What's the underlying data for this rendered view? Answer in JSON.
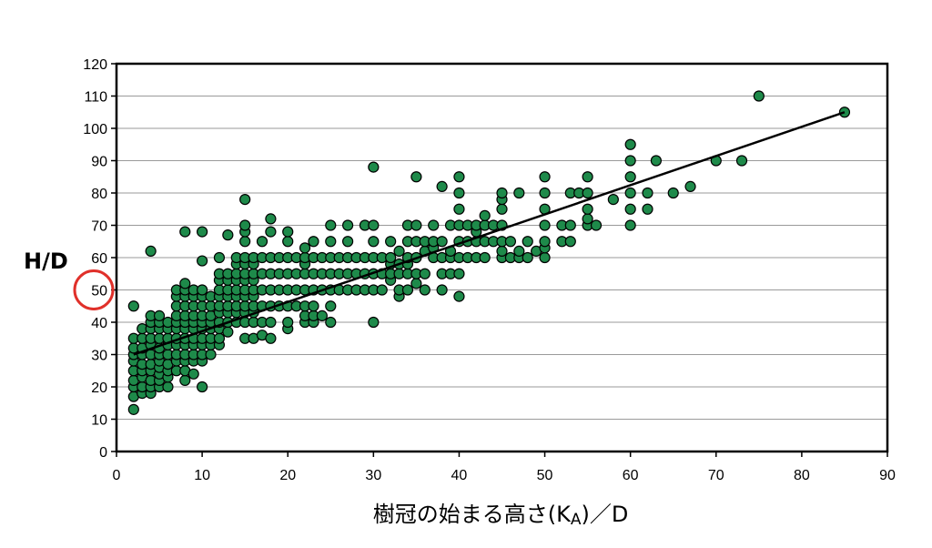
{
  "chart_data": {
    "type": "scatter",
    "title": "",
    "xlabel": "樹冠の始まる高さ(K",
    "xlabel_sub": "A",
    "xlabel_suffix": ")／D",
    "ylabel": "H/D",
    "xlim": [
      0,
      90
    ],
    "ylim": [
      0,
      120
    ],
    "x_ticks": [
      0,
      10,
      20,
      30,
      40,
      50,
      60,
      70,
      80,
      90
    ],
    "y_ticks": [
      0,
      10,
      20,
      30,
      40,
      50,
      60,
      70,
      80,
      90,
      100,
      110,
      120
    ],
    "grid": "horizontal",
    "highlight": {
      "axis": "y",
      "value": 50
    },
    "colors": {
      "marker": "#1e8a4a",
      "marker_edge": "#000000",
      "trendline": "#000000",
      "highlight_circle": "#e0302a"
    },
    "trendline": {
      "x": [
        2,
        85
      ],
      "y": [
        30,
        105
      ]
    },
    "points": [
      [
        2,
        13
      ],
      [
        2,
        17
      ],
      [
        2,
        20
      ],
      [
        2,
        22
      ],
      [
        2,
        25
      ],
      [
        2,
        28
      ],
      [
        2,
        30
      ],
      [
        2,
        32
      ],
      [
        2,
        35
      ],
      [
        2,
        45
      ],
      [
        3,
        18
      ],
      [
        3,
        20
      ],
      [
        3,
        23
      ],
      [
        3,
        25
      ],
      [
        3,
        27
      ],
      [
        3,
        30
      ],
      [
        3,
        32
      ],
      [
        3,
        35
      ],
      [
        3,
        38
      ],
      [
        4,
        18
      ],
      [
        4,
        20
      ],
      [
        4,
        22
      ],
      [
        4,
        25
      ],
      [
        4,
        27
      ],
      [
        4,
        30
      ],
      [
        4,
        33
      ],
      [
        4,
        35
      ],
      [
        4,
        38
      ],
      [
        4,
        40
      ],
      [
        4,
        42
      ],
      [
        4,
        62
      ],
      [
        5,
        20
      ],
      [
        5,
        22
      ],
      [
        5,
        24
      ],
      [
        5,
        26
      ],
      [
        5,
        28
      ],
      [
        5,
        30
      ],
      [
        5,
        32
      ],
      [
        5,
        35
      ],
      [
        5,
        38
      ],
      [
        5,
        40
      ],
      [
        5,
        42
      ],
      [
        6,
        20
      ],
      [
        6,
        23
      ],
      [
        6,
        25
      ],
      [
        6,
        27
      ],
      [
        6,
        30
      ],
      [
        6,
        33
      ],
      [
        6,
        35
      ],
      [
        6,
        38
      ],
      [
        6,
        40
      ],
      [
        7,
        25
      ],
      [
        7,
        28
      ],
      [
        7,
        30
      ],
      [
        7,
        33
      ],
      [
        7,
        35
      ],
      [
        7,
        38
      ],
      [
        7,
        40
      ],
      [
        7,
        42
      ],
      [
        7,
        45
      ],
      [
        7,
        48
      ],
      [
        7,
        50
      ],
      [
        8,
        22
      ],
      [
        8,
        25
      ],
      [
        8,
        28
      ],
      [
        8,
        30
      ],
      [
        8,
        33
      ],
      [
        8,
        35
      ],
      [
        8,
        38
      ],
      [
        8,
        40
      ],
      [
        8,
        42
      ],
      [
        8,
        45
      ],
      [
        8,
        48
      ],
      [
        8,
        50
      ],
      [
        8,
        52
      ],
      [
        8,
        68
      ],
      [
        9,
        24
      ],
      [
        9,
        28
      ],
      [
        9,
        30
      ],
      [
        9,
        33
      ],
      [
        9,
        35
      ],
      [
        9,
        38
      ],
      [
        9,
        40
      ],
      [
        9,
        42
      ],
      [
        9,
        45
      ],
      [
        9,
        48
      ],
      [
        9,
        50
      ],
      [
        10,
        20
      ],
      [
        10,
        28
      ],
      [
        10,
        30
      ],
      [
        10,
        33
      ],
      [
        10,
        35
      ],
      [
        10,
        38
      ],
      [
        10,
        40
      ],
      [
        10,
        42
      ],
      [
        10,
        45
      ],
      [
        10,
        48
      ],
      [
        10,
        50
      ],
      [
        10,
        59
      ],
      [
        10,
        68
      ],
      [
        11,
        30
      ],
      [
        11,
        33
      ],
      [
        11,
        35
      ],
      [
        11,
        38
      ],
      [
        11,
        40
      ],
      [
        11,
        42
      ],
      [
        11,
        45
      ],
      [
        11,
        48
      ],
      [
        12,
        33
      ],
      [
        12,
        35
      ],
      [
        12,
        38
      ],
      [
        12,
        40
      ],
      [
        12,
        43
      ],
      [
        12,
        45
      ],
      [
        12,
        48
      ],
      [
        12,
        50
      ],
      [
        12,
        53
      ],
      [
        12,
        55
      ],
      [
        12,
        60
      ],
      [
        13,
        37
      ],
      [
        13,
        40
      ],
      [
        13,
        43
      ],
      [
        13,
        45
      ],
      [
        13,
        48
      ],
      [
        13,
        50
      ],
      [
        13,
        53
      ],
      [
        13,
        55
      ],
      [
        13,
        67
      ],
      [
        14,
        40
      ],
      [
        14,
        43
      ],
      [
        14,
        45
      ],
      [
        14,
        48
      ],
      [
        14,
        50
      ],
      [
        14,
        53
      ],
      [
        14,
        55
      ],
      [
        14,
        58
      ],
      [
        14,
        60
      ],
      [
        15,
        35
      ],
      [
        15,
        40
      ],
      [
        15,
        43
      ],
      [
        15,
        45
      ],
      [
        15,
        48
      ],
      [
        15,
        50
      ],
      [
        15,
        53
      ],
      [
        15,
        55
      ],
      [
        15,
        58
      ],
      [
        15,
        60
      ],
      [
        15,
        65
      ],
      [
        15,
        68
      ],
      [
        15,
        70
      ],
      [
        15,
        78
      ],
      [
        16,
        35
      ],
      [
        16,
        40
      ],
      [
        16,
        43
      ],
      [
        16,
        45
      ],
      [
        16,
        48
      ],
      [
        16,
        50
      ],
      [
        16,
        53
      ],
      [
        16,
        55
      ],
      [
        16,
        58
      ],
      [
        16,
        60
      ],
      [
        17,
        36
      ],
      [
        17,
        40
      ],
      [
        17,
        45
      ],
      [
        17,
        50
      ],
      [
        17,
        55
      ],
      [
        17,
        60
      ],
      [
        17,
        65
      ],
      [
        18,
        35
      ],
      [
        18,
        40
      ],
      [
        18,
        45
      ],
      [
        18,
        50
      ],
      [
        18,
        55
      ],
      [
        18,
        60
      ],
      [
        18,
        68
      ],
      [
        18,
        72
      ],
      [
        19,
        45
      ],
      [
        19,
        50
      ],
      [
        19,
        55
      ],
      [
        19,
        60
      ],
      [
        20,
        38
      ],
      [
        20,
        40
      ],
      [
        20,
        45
      ],
      [
        20,
        50
      ],
      [
        20,
        55
      ],
      [
        20,
        60
      ],
      [
        20,
        65
      ],
      [
        20,
        68
      ],
      [
        21,
        45
      ],
      [
        21,
        50
      ],
      [
        21,
        55
      ],
      [
        21,
        60
      ],
      [
        22,
        40
      ],
      [
        22,
        42
      ],
      [
        22,
        45
      ],
      [
        22,
        50
      ],
      [
        22,
        55
      ],
      [
        22,
        58
      ],
      [
        22,
        60
      ],
      [
        22,
        63
      ],
      [
        23,
        40
      ],
      [
        23,
        42
      ],
      [
        23,
        45
      ],
      [
        23,
        50
      ],
      [
        23,
        55
      ],
      [
        23,
        60
      ],
      [
        23,
        65
      ],
      [
        24,
        42
      ],
      [
        24,
        50
      ],
      [
        24,
        55
      ],
      [
        24,
        60
      ],
      [
        25,
        40
      ],
      [
        25,
        45
      ],
      [
        25,
        50
      ],
      [
        25,
        55
      ],
      [
        25,
        60
      ],
      [
        25,
        65
      ],
      [
        25,
        70
      ],
      [
        26,
        50
      ],
      [
        26,
        55
      ],
      [
        26,
        60
      ],
      [
        27,
        50
      ],
      [
        27,
        55
      ],
      [
        27,
        60
      ],
      [
        27,
        65
      ],
      [
        27,
        70
      ],
      [
        28,
        50
      ],
      [
        28,
        55
      ],
      [
        28,
        60
      ],
      [
        29,
        50
      ],
      [
        29,
        55
      ],
      [
        29,
        60
      ],
      [
        29,
        70
      ],
      [
        30,
        40
      ],
      [
        30,
        50
      ],
      [
        30,
        55
      ],
      [
        30,
        60
      ],
      [
        30,
        65
      ],
      [
        30,
        70
      ],
      [
        30,
        88
      ],
      [
        31,
        50
      ],
      [
        31,
        55
      ],
      [
        31,
        60
      ],
      [
        32,
        53
      ],
      [
        32,
        55
      ],
      [
        32,
        58
      ],
      [
        32,
        60
      ],
      [
        32,
        65
      ],
      [
        33,
        48
      ],
      [
        33,
        50
      ],
      [
        33,
        55
      ],
      [
        33,
        58
      ],
      [
        33,
        62
      ],
      [
        34,
        50
      ],
      [
        34,
        55
      ],
      [
        34,
        58
      ],
      [
        34,
        60
      ],
      [
        34,
        65
      ],
      [
        34,
        70
      ],
      [
        35,
        52
      ],
      [
        35,
        55
      ],
      [
        35,
        60
      ],
      [
        35,
        65
      ],
      [
        35,
        70
      ],
      [
        35,
        85
      ],
      [
        36,
        50
      ],
      [
        36,
        55
      ],
      [
        36,
        62
      ],
      [
        36,
        65
      ],
      [
        37,
        60
      ],
      [
        37,
        63
      ],
      [
        37,
        65
      ],
      [
        37,
        70
      ],
      [
        38,
        50
      ],
      [
        38,
        55
      ],
      [
        38,
        60
      ],
      [
        38,
        65
      ],
      [
        38,
        82
      ],
      [
        39,
        55
      ],
      [
        39,
        60
      ],
      [
        39,
        62
      ],
      [
        39,
        70
      ],
      [
        40,
        48
      ],
      [
        40,
        55
      ],
      [
        40,
        60
      ],
      [
        40,
        65
      ],
      [
        40,
        70
      ],
      [
        40,
        75
      ],
      [
        40,
        80
      ],
      [
        40,
        85
      ],
      [
        41,
        60
      ],
      [
        41,
        65
      ],
      [
        41,
        70
      ],
      [
        42,
        60
      ],
      [
        42,
        65
      ],
      [
        42,
        68
      ],
      [
        42,
        70
      ],
      [
        43,
        60
      ],
      [
        43,
        65
      ],
      [
        43,
        70
      ],
      [
        43,
        73
      ],
      [
        44,
        65
      ],
      [
        44,
        70
      ],
      [
        45,
        60
      ],
      [
        45,
        62
      ],
      [
        45,
        65
      ],
      [
        45,
        70
      ],
      [
        45,
        75
      ],
      [
        45,
        78
      ],
      [
        45,
        80
      ],
      [
        46,
        60
      ],
      [
        46,
        65
      ],
      [
        47,
        60
      ],
      [
        47,
        62
      ],
      [
        47,
        80
      ],
      [
        48,
        60
      ],
      [
        48,
        65
      ],
      [
        49,
        62
      ],
      [
        50,
        60
      ],
      [
        50,
        63
      ],
      [
        50,
        65
      ],
      [
        50,
        70
      ],
      [
        50,
        75
      ],
      [
        50,
        80
      ],
      [
        50,
        85
      ],
      [
        52,
        65
      ],
      [
        52,
        70
      ],
      [
        53,
        65
      ],
      [
        53,
        70
      ],
      [
        53,
        80
      ],
      [
        54,
        80
      ],
      [
        55,
        70
      ],
      [
        55,
        72
      ],
      [
        55,
        75
      ],
      [
        55,
        80
      ],
      [
        55,
        85
      ],
      [
        56,
        70
      ],
      [
        58,
        78
      ],
      [
        60,
        70
      ],
      [
        60,
        75
      ],
      [
        60,
        80
      ],
      [
        60,
        85
      ],
      [
        60,
        90
      ],
      [
        60,
        95
      ],
      [
        62,
        75
      ],
      [
        62,
        80
      ],
      [
        63,
        90
      ],
      [
        65,
        80
      ],
      [
        67,
        82
      ],
      [
        70,
        90
      ],
      [
        73,
        90
      ],
      [
        75,
        110
      ],
      [
        85,
        105
      ]
    ]
  }
}
